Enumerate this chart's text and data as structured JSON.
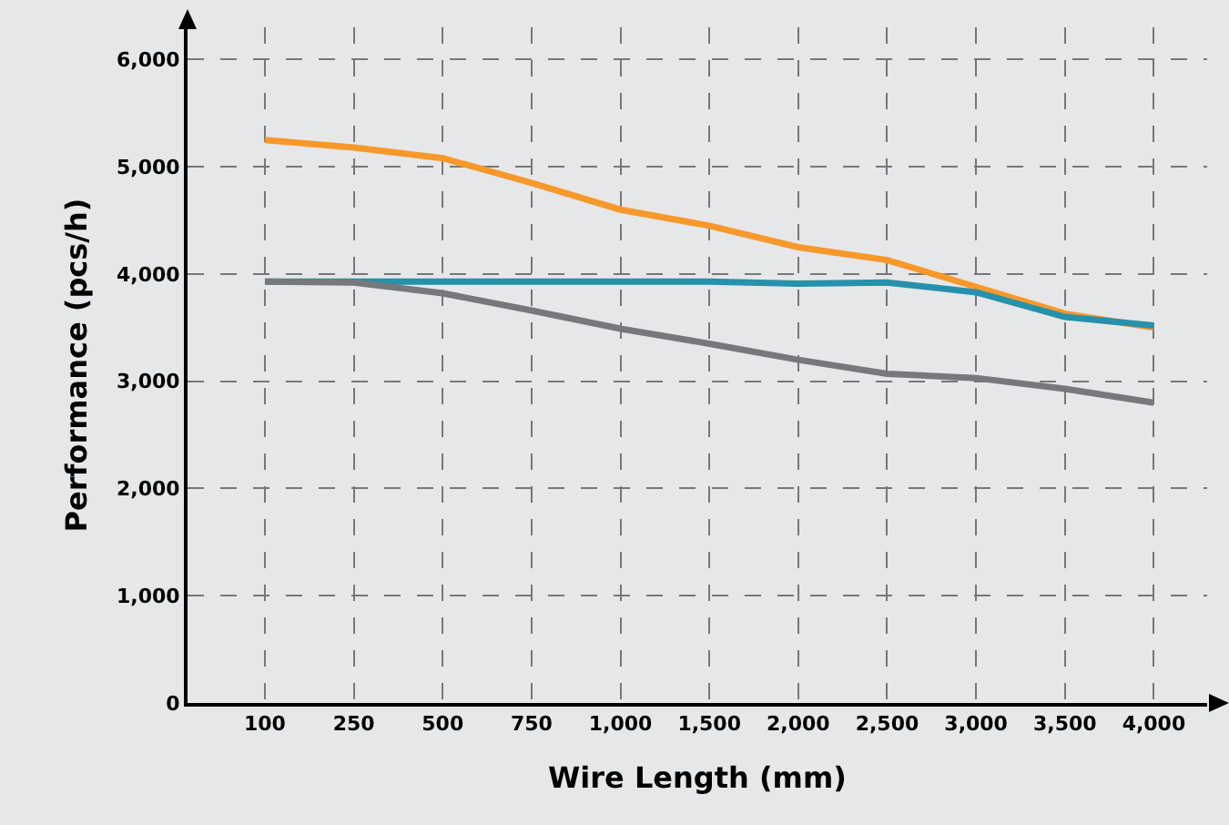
{
  "chart_data": {
    "type": "line",
    "xlabel": "Wire Length (mm)",
    "ylabel": "Performance (pcs/h)",
    "categories": [
      "100",
      "250",
      "500",
      "750",
      "1,000",
      "1,500",
      "2,000",
      "2,500",
      "3,000",
      "3,500",
      "4,000"
    ],
    "series": [
      {
        "color": "#f7982a",
        "values": [
          5250,
          5180,
          5080,
          4850,
          4600,
          4450,
          4250,
          4130,
          3880,
          3630,
          3500
        ]
      },
      {
        "color": "#2591ab",
        "values": [
          3930,
          3930,
          3930,
          3930,
          3930,
          3930,
          3910,
          3920,
          3830,
          3600,
          3520
        ]
      },
      {
        "color": "#77787b",
        "values": [
          3930,
          3920,
          3820,
          3660,
          3490,
          3350,
          3200,
          3070,
          3030,
          2930,
          2800
        ]
      }
    ],
    "ylim": [
      0,
      6300
    ],
    "yticks": [
      {
        "value": 0,
        "label": "0"
      },
      {
        "value": 1000,
        "label": "1,000"
      },
      {
        "value": 2000,
        "label": "2,000"
      },
      {
        "value": 3000,
        "label": "3,000"
      },
      {
        "value": 4000,
        "label": "4,000"
      },
      {
        "value": 5000,
        "label": "5,000"
      },
      {
        "value": 6000,
        "label": "6,000"
      }
    ],
    "grid": true,
    "marker": "none",
    "line_style": "solid"
  }
}
